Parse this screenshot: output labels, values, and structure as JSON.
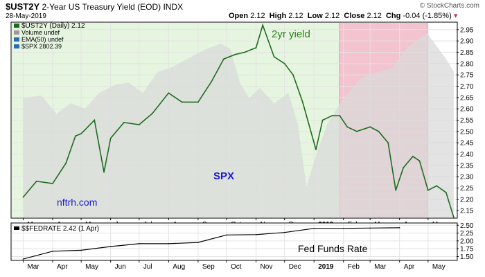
{
  "header": {
    "symbol": "$UST2Y",
    "description": "2-Year US Treasury Yield (EOD)",
    "exchange": "INDX",
    "date": "28-May-2019",
    "open_label": "Open",
    "open": "2.12",
    "high_label": "High",
    "high": "2.12",
    "low_label": "Low",
    "low": "2.12",
    "close_label": "Close",
    "close": "2.12",
    "chg_label": "Chg",
    "chg": "-0.04 (-1.85%)",
    "watermark": "© StockCharts.com"
  },
  "legend": [
    {
      "label": "$UST2Y (Daily) 2.12",
      "color": "#1e6b1e"
    },
    {
      "label": "Volume undef",
      "color": "#999999"
    },
    {
      "label": "EMA(50) undef",
      "color": "#2a6db0"
    },
    {
      "label": "$SPX 2802.39",
      "color": "#2a6db0"
    }
  ],
  "annotations": {
    "yield_label": "2yr yield",
    "spx_label": "SPX",
    "source_label": "nftrh.com",
    "fed_label": "Fed Funds Rate"
  },
  "colors": {
    "yield_line": "#1e6b1e",
    "spx_area": "#d9d9d9",
    "green_zone": "#e6f5df",
    "red_zone": "#f3c3cf",
    "red_zone_border": "#d98aa0",
    "fed_line": "#000000",
    "spx_label": "#1a1acc",
    "source_label": "#1a1acc",
    "yield_label": "#2e7d1f"
  },
  "chart_data": [
    {
      "type": "line",
      "title": "$UST2Y",
      "x_tick_labels": [
        "Mar",
        "Apr",
        "May",
        "Jun",
        "Jul",
        "Aug",
        "Sep",
        "Oct",
        "Nov",
        "Dec",
        "2019",
        "Feb",
        "Mar",
        "Apr",
        "May"
      ],
      "ylim": [
        2.12,
        2.98
      ],
      "y_ticks": [
        2.15,
        2.2,
        2.25,
        2.3,
        2.35,
        2.4,
        2.45,
        2.5,
        2.55,
        2.6,
        2.65,
        2.7,
        2.75,
        2.8,
        2.85,
        2.9,
        2.95
      ],
      "y_axis_side": "right",
      "grid": true,
      "legend_position": "top-left",
      "highlighted_periods": [
        {
          "from": "2018-03",
          "to": "2019-01-28",
          "color": "green"
        },
        {
          "from": "2019-01-28",
          "to": "2019-04-30",
          "color": "red"
        }
      ],
      "series": [
        {
          "name": "$UST2Y (Daily)",
          "style": "line",
          "x": [
            "2018-03-01",
            "2018-03-15",
            "2018-04-01",
            "2018-04-15",
            "2018-04-25",
            "2018-05-01",
            "2018-05-15",
            "2018-05-25",
            "2018-06-01",
            "2018-06-15",
            "2018-07-01",
            "2018-07-15",
            "2018-08-01",
            "2018-08-15",
            "2018-09-01",
            "2018-09-15",
            "2018-09-28",
            "2018-10-10",
            "2018-10-20",
            "2018-11-01",
            "2018-11-08",
            "2018-11-20",
            "2018-12-01",
            "2018-12-10",
            "2018-12-20",
            "2019-01-03",
            "2019-01-10",
            "2019-01-20",
            "2019-01-28",
            "2019-02-05",
            "2019-02-15",
            "2019-03-01",
            "2019-03-10",
            "2019-03-20",
            "2019-03-28",
            "2019-04-05",
            "2019-04-15",
            "2019-04-22",
            "2019-05-01",
            "2019-05-10",
            "2019-05-20",
            "2019-05-28"
          ],
          "y": [
            2.21,
            2.28,
            2.27,
            2.36,
            2.48,
            2.49,
            2.55,
            2.32,
            2.47,
            2.54,
            2.53,
            2.58,
            2.67,
            2.63,
            2.63,
            2.72,
            2.82,
            2.84,
            2.85,
            2.87,
            2.97,
            2.83,
            2.8,
            2.75,
            2.63,
            2.42,
            2.55,
            2.57,
            2.57,
            2.52,
            2.5,
            2.52,
            2.5,
            2.45,
            2.24,
            2.34,
            2.39,
            2.37,
            2.24,
            2.26,
            2.23,
            2.12
          ]
        },
        {
          "name": "$SPX",
          "style": "area",
          "x": [
            "2018-03-01",
            "2018-03-20",
            "2018-04-05",
            "2018-04-20",
            "2018-05-05",
            "2018-05-20",
            "2018-06-05",
            "2018-06-20",
            "2018-07-05",
            "2018-07-20",
            "2018-08-05",
            "2018-08-25",
            "2018-09-10",
            "2018-09-25",
            "2018-10-05",
            "2018-10-15",
            "2018-10-25",
            "2018-11-05",
            "2018-11-20",
            "2018-12-05",
            "2018-12-15",
            "2018-12-24",
            "2019-01-05",
            "2019-01-15",
            "2019-02-01",
            "2019-02-20",
            "2019-03-10",
            "2019-03-25",
            "2019-04-10",
            "2019-04-30",
            "2019-05-10",
            "2019-05-20",
            "2019-05-28"
          ],
          "y": [
            2700,
            2710,
            2640,
            2680,
            2660,
            2720,
            2750,
            2760,
            2720,
            2800,
            2820,
            2860,
            2890,
            2910,
            2890,
            2760,
            2700,
            2740,
            2680,
            2720,
            2600,
            2360,
            2500,
            2600,
            2700,
            2780,
            2800,
            2820,
            2900,
            2950,
            2900,
            2850,
            2802.39
          ]
        }
      ]
    },
    {
      "type": "line",
      "title": "$$FEDRATE",
      "legend_label": "$$FEDRATE 2.42 (1 Apr)",
      "x_tick_labels": [
        "Mar",
        "Apr",
        "May",
        "Jun",
        "Jul",
        "Aug",
        "Sep",
        "Oct",
        "Nov",
        "Dec",
        "2019",
        "Feb",
        "Mar",
        "Apr",
        "May"
      ],
      "ylim": [
        1.4,
        2.55
      ],
      "y_ticks": [
        1.5,
        1.75,
        2.0,
        2.25,
        2.5
      ],
      "y_tick_labels": [
        "1.50",
        "1.75",
        "2.00",
        "2.25",
        "2.50"
      ],
      "y_axis_side": "right",
      "grid": true,
      "series": [
        {
          "name": "$$FEDRATE",
          "x": [
            "2018-03-01",
            "2018-04-01",
            "2018-05-01",
            "2018-06-01",
            "2018-07-01",
            "2018-08-01",
            "2018-09-01",
            "2018-10-01",
            "2018-11-01",
            "2018-12-01",
            "2019-01-01",
            "2019-02-01",
            "2019-03-01",
            "2019-04-01"
          ],
          "y": [
            1.42,
            1.67,
            1.7,
            1.82,
            1.91,
            1.91,
            1.95,
            2.19,
            2.2,
            2.27,
            2.4,
            2.4,
            2.41,
            2.42
          ]
        }
      ]
    }
  ]
}
